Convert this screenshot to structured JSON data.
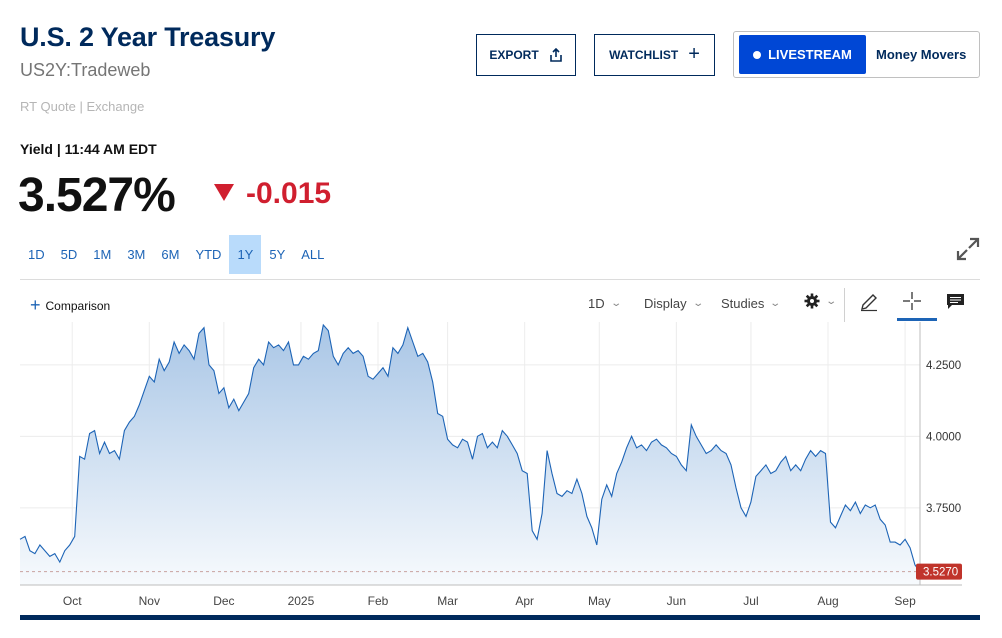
{
  "header": {
    "title": "U.S. 2 Year Treasury",
    "symbol": "US2Y:Tradeweb",
    "rt_quote": "RT Quote | Exchange"
  },
  "actions": {
    "export_label": "EXPORT",
    "watchlist_label": "WATCHLIST",
    "livestream_label": "LIVESTREAM",
    "money_movers_label": "Money Movers"
  },
  "quote": {
    "label": "Yield | 11:44 AM EDT",
    "value": "3.527%",
    "change": "-0.015",
    "change_color": "#d01f2f"
  },
  "ranges": [
    "1D",
    "5D",
    "1M",
    "3M",
    "6M",
    "YTD",
    "1Y",
    "5Y",
    "ALL"
  ],
  "active_range": "1Y",
  "toolbar": {
    "comparison_label": "Comparison",
    "interval_label": "1D",
    "display_label": "Display",
    "studies_label": "Studies",
    "icons": [
      "gear-icon",
      "pencil-icon",
      "crosshair-icon",
      "comment-icon",
      "expand-icon"
    ]
  },
  "chart_data": {
    "type": "area",
    "title": "",
    "xlabel": "",
    "ylabel": "",
    "x_ticks": [
      "Oct",
      "Nov",
      "Dec",
      "2025",
      "Feb",
      "Mar",
      "Apr",
      "May",
      "Jun",
      "Jul",
      "Aug",
      "Sep"
    ],
    "y_ticks": [
      "3.7500",
      "4.0000",
      "4.2500"
    ],
    "ylim": [
      3.48,
      4.4
    ],
    "last_value_label": "3.5270",
    "last_value": 3.527,
    "colors": {
      "line": "#1d64b6",
      "fill_top": "#a9c6e6",
      "fill_bottom": "#f7fafd",
      "last_badge": "#c0342b"
    },
    "series": [
      {
        "points": [
          [
            "2024-09-10",
            3.64
          ],
          [
            "2024-09-12",
            3.65
          ],
          [
            "2024-09-14",
            3.6
          ],
          [
            "2024-09-16",
            3.59
          ],
          [
            "2024-09-18",
            3.62
          ],
          [
            "2024-09-20",
            3.6
          ],
          [
            "2024-09-22",
            3.58
          ],
          [
            "2024-09-24",
            3.59
          ],
          [
            "2024-09-26",
            3.56
          ],
          [
            "2024-09-28",
            3.6
          ],
          [
            "2024-09-30",
            3.62
          ],
          [
            "2024-10-02",
            3.65
          ],
          [
            "2024-10-04",
            3.93
          ],
          [
            "2024-10-06",
            3.92
          ],
          [
            "2024-10-08",
            4.01
          ],
          [
            "2024-10-10",
            4.02
          ],
          [
            "2024-10-12",
            3.94
          ],
          [
            "2024-10-14",
            3.98
          ],
          [
            "2024-10-16",
            3.94
          ],
          [
            "2024-10-18",
            3.95
          ],
          [
            "2024-10-20",
            3.92
          ],
          [
            "2024-10-22",
            4.02
          ],
          [
            "2024-10-24",
            4.05
          ],
          [
            "2024-10-26",
            4.07
          ],
          [
            "2024-10-28",
            4.11
          ],
          [
            "2024-10-30",
            4.16
          ],
          [
            "2024-11-01",
            4.21
          ],
          [
            "2024-11-03",
            4.19
          ],
          [
            "2024-11-05",
            4.27
          ],
          [
            "2024-11-07",
            4.23
          ],
          [
            "2024-11-09",
            4.26
          ],
          [
            "2024-11-11",
            4.33
          ],
          [
            "2024-11-13",
            4.29
          ],
          [
            "2024-11-15",
            4.32
          ],
          [
            "2024-11-17",
            4.3
          ],
          [
            "2024-11-19",
            4.27
          ],
          [
            "2024-11-21",
            4.36
          ],
          [
            "2024-11-23",
            4.38
          ],
          [
            "2024-11-25",
            4.25
          ],
          [
            "2024-11-27",
            4.23
          ],
          [
            "2024-11-29",
            4.15
          ],
          [
            "2024-12-01",
            4.17
          ],
          [
            "2024-12-03",
            4.1
          ],
          [
            "2024-12-05",
            4.13
          ],
          [
            "2024-12-07",
            4.09
          ],
          [
            "2024-12-09",
            4.12
          ],
          [
            "2024-12-11",
            4.15
          ],
          [
            "2024-12-13",
            4.24
          ],
          [
            "2024-12-15",
            4.27
          ],
          [
            "2024-12-17",
            4.25
          ],
          [
            "2024-12-19",
            4.33
          ],
          [
            "2024-12-21",
            4.31
          ],
          [
            "2024-12-23",
            4.32
          ],
          [
            "2024-12-25",
            4.3
          ],
          [
            "2024-12-27",
            4.33
          ],
          [
            "2024-12-29",
            4.25
          ],
          [
            "2024-12-31",
            4.25
          ],
          [
            "2025-01-02",
            4.28
          ],
          [
            "2025-01-04",
            4.27
          ],
          [
            "2025-01-06",
            4.29
          ],
          [
            "2025-01-08",
            4.3
          ],
          [
            "2025-01-10",
            4.39
          ],
          [
            "2025-01-12",
            4.37
          ],
          [
            "2025-01-14",
            4.28
          ],
          [
            "2025-01-16",
            4.25
          ],
          [
            "2025-01-18",
            4.29
          ],
          [
            "2025-01-20",
            4.31
          ],
          [
            "2025-01-22",
            4.29
          ],
          [
            "2025-01-24",
            4.3
          ],
          [
            "2025-01-26",
            4.28
          ],
          [
            "2025-01-28",
            4.21
          ],
          [
            "2025-01-30",
            4.2
          ],
          [
            "2025-02-01",
            4.22
          ],
          [
            "2025-02-03",
            4.24
          ],
          [
            "2025-02-05",
            4.21
          ],
          [
            "2025-02-07",
            4.31
          ],
          [
            "2025-02-09",
            4.29
          ],
          [
            "2025-02-11",
            4.32
          ],
          [
            "2025-02-13",
            4.38
          ],
          [
            "2025-02-15",
            4.33
          ],
          [
            "2025-02-17",
            4.28
          ],
          [
            "2025-02-19",
            4.29
          ],
          [
            "2025-02-21",
            4.26
          ],
          [
            "2025-02-23",
            4.19
          ],
          [
            "2025-02-25",
            4.08
          ],
          [
            "2025-02-27",
            4.07
          ],
          [
            "2025-03-01",
            3.99
          ],
          [
            "2025-03-03",
            3.97
          ],
          [
            "2025-03-05",
            3.96
          ],
          [
            "2025-03-07",
            3.99
          ],
          [
            "2025-03-09",
            3.98
          ],
          [
            "2025-03-11",
            3.92
          ],
          [
            "2025-03-13",
            4.0
          ],
          [
            "2025-03-15",
            4.01
          ],
          [
            "2025-03-17",
            3.96
          ],
          [
            "2025-03-19",
            3.98
          ],
          [
            "2025-03-21",
            3.96
          ],
          [
            "2025-03-23",
            4.02
          ],
          [
            "2025-03-25",
            4.0
          ],
          [
            "2025-03-27",
            3.97
          ],
          [
            "2025-03-29",
            3.94
          ],
          [
            "2025-03-31",
            3.88
          ],
          [
            "2025-04-02",
            3.87
          ],
          [
            "2025-04-04",
            3.67
          ],
          [
            "2025-04-06",
            3.64
          ],
          [
            "2025-04-08",
            3.73
          ],
          [
            "2025-04-10",
            3.95
          ],
          [
            "2025-04-12",
            3.87
          ],
          [
            "2025-04-14",
            3.8
          ],
          [
            "2025-04-16",
            3.79
          ],
          [
            "2025-04-18",
            3.81
          ],
          [
            "2025-04-20",
            3.8
          ],
          [
            "2025-04-22",
            3.85
          ],
          [
            "2025-04-24",
            3.8
          ],
          [
            "2025-04-26",
            3.72
          ],
          [
            "2025-04-28",
            3.68
          ],
          [
            "2025-04-30",
            3.62
          ],
          [
            "2025-05-02",
            3.78
          ],
          [
            "2025-05-04",
            3.83
          ],
          [
            "2025-05-06",
            3.79
          ],
          [
            "2025-05-08",
            3.87
          ],
          [
            "2025-05-10",
            3.91
          ],
          [
            "2025-05-12",
            3.96
          ],
          [
            "2025-05-14",
            4.0
          ],
          [
            "2025-05-16",
            3.96
          ],
          [
            "2025-05-18",
            3.97
          ],
          [
            "2025-05-20",
            3.95
          ],
          [
            "2025-05-22",
            3.98
          ],
          [
            "2025-05-24",
            3.99
          ],
          [
            "2025-05-26",
            3.97
          ],
          [
            "2025-05-28",
            3.96
          ],
          [
            "2025-05-30",
            3.94
          ],
          [
            "2025-06-01",
            3.93
          ],
          [
            "2025-06-03",
            3.9
          ],
          [
            "2025-06-05",
            3.88
          ],
          [
            "2025-06-07",
            4.04
          ],
          [
            "2025-06-09",
            4.0
          ],
          [
            "2025-06-11",
            3.97
          ],
          [
            "2025-06-13",
            3.94
          ],
          [
            "2025-06-15",
            3.95
          ],
          [
            "2025-06-17",
            3.97
          ],
          [
            "2025-06-19",
            3.95
          ],
          [
            "2025-06-21",
            3.94
          ],
          [
            "2025-06-23",
            3.9
          ],
          [
            "2025-06-25",
            3.82
          ],
          [
            "2025-06-27",
            3.75
          ],
          [
            "2025-06-29",
            3.72
          ],
          [
            "2025-07-01",
            3.77
          ],
          [
            "2025-07-03",
            3.86
          ],
          [
            "2025-07-05",
            3.88
          ],
          [
            "2025-07-07",
            3.9
          ],
          [
            "2025-07-09",
            3.87
          ],
          [
            "2025-07-11",
            3.88
          ],
          [
            "2025-07-13",
            3.91
          ],
          [
            "2025-07-15",
            3.93
          ],
          [
            "2025-07-17",
            3.88
          ],
          [
            "2025-07-19",
            3.9
          ],
          [
            "2025-07-21",
            3.88
          ],
          [
            "2025-07-23",
            3.92
          ],
          [
            "2025-07-25",
            3.95
          ],
          [
            "2025-07-27",
            3.93
          ],
          [
            "2025-07-29",
            3.95
          ],
          [
            "2025-07-31",
            3.94
          ],
          [
            "2025-08-02",
            3.7
          ],
          [
            "2025-08-04",
            3.68
          ],
          [
            "2025-08-06",
            3.72
          ],
          [
            "2025-08-08",
            3.76
          ],
          [
            "2025-08-10",
            3.74
          ],
          [
            "2025-08-12",
            3.77
          ],
          [
            "2025-08-14",
            3.73
          ],
          [
            "2025-08-16",
            3.76
          ],
          [
            "2025-08-18",
            3.75
          ],
          [
            "2025-08-20",
            3.76
          ],
          [
            "2025-08-22",
            3.71
          ],
          [
            "2025-08-24",
            3.69
          ],
          [
            "2025-08-26",
            3.63
          ],
          [
            "2025-08-28",
            3.63
          ],
          [
            "2025-08-30",
            3.62
          ],
          [
            "2025-09-01",
            3.64
          ],
          [
            "2025-09-03",
            3.61
          ],
          [
            "2025-09-05",
            3.55
          ],
          [
            "2025-09-07",
            3.527
          ]
        ]
      }
    ]
  }
}
